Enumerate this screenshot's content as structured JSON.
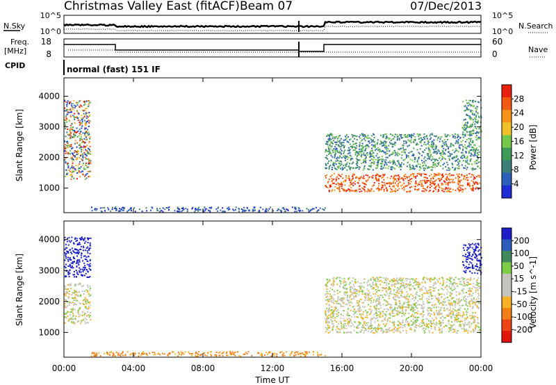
{
  "header": {
    "title": "Christmas Valley East (fitACF)",
    "beam": "Beam 07",
    "date": "07/Dec/2013"
  },
  "noise_panel": {
    "left_label": "N.Sky",
    "right_label": "N.Search",
    "left_ticks": [
      "10^5",
      "10^0"
    ],
    "right_ticks": [
      "10^5",
      "10^0"
    ]
  },
  "freq_panel": {
    "left_label_1": "Freq.",
    "left_label_2": "[MHz]",
    "right_label": "Nave",
    "left_ticks": [
      "18",
      "8"
    ],
    "right_ticks": [
      "60",
      "0"
    ]
  },
  "cpid": {
    "label": "CPID",
    "value": "normal (fast) 151 IF"
  },
  "colors": {
    "frame": "#000000",
    "power_scale": [
      "#1e2dd2",
      "#2c5fb8",
      "#3b7f7a",
      "#3f9a5a",
      "#74c94a",
      "#f2c22a",
      "#f7921b",
      "#f25a12",
      "#e8210e"
    ],
    "velocity_scale": [
      "#1c1fc8",
      "#2c5dbb",
      "#3e8a5c",
      "#7ccd45",
      "#c4c4bc",
      "#c4c4bc",
      "#f6b125",
      "#f17e16",
      "#ec4412",
      "#e2150d"
    ]
  },
  "chart_data": [
    {
      "type": "heatmap",
      "title": "Power",
      "ylabel": "Slant Range [km]",
      "xlabel": "",
      "ylim": [
        200,
        4600
      ],
      "xlim_hours": [
        0,
        24
      ],
      "x_ticks": [
        "00:00",
        "04:00",
        "08:00",
        "12:00",
        "16:00",
        "20:00",
        "00:00"
      ],
      "y_ticks": [
        "1000",
        "2000",
        "3000",
        "4000"
      ],
      "colorbar": {
        "label": "Power [dB]",
        "ticks": [
          "4",
          "8",
          "12",
          "16",
          "20",
          "24",
          "28"
        ],
        "range": [
          0,
          30
        ]
      },
      "regions": [
        {
          "start_hour": 0.0,
          "end_hour": 1.5,
          "range_min_km": 1300,
          "range_max_km": 3900,
          "level": "mixed high"
        },
        {
          "start_hour": 1.5,
          "end_hour": 15.0,
          "range_min_km": 250,
          "range_max_km": 400,
          "level": "low"
        },
        {
          "start_hour": 15.0,
          "end_hour": 23.9,
          "range_min_km": 900,
          "range_max_km": 1500,
          "level": "high"
        },
        {
          "start_hour": 15.0,
          "end_hour": 23.9,
          "range_min_km": 1600,
          "range_max_km": 2800,
          "level": "medium"
        },
        {
          "start_hour": 22.9,
          "end_hour": 24.0,
          "range_min_km": 2800,
          "range_max_km": 3900,
          "level": "medium"
        }
      ]
    },
    {
      "type": "heatmap",
      "title": "Velocity",
      "ylabel": "Slant Range [km]",
      "xlabel": "Time UT",
      "ylim": [
        200,
        4600
      ],
      "xlim_hours": [
        0,
        24
      ],
      "x_ticks": [
        "00:00",
        "04:00",
        "08:00",
        "12:00",
        "16:00",
        "20:00",
        "00:00"
      ],
      "y_ticks": [
        "1000",
        "2000",
        "3000",
        "4000"
      ],
      "colorbar": {
        "label": "Velocity [m s^-1]",
        "ticks": [
          "200",
          "100",
          "50",
          "15",
          "-15",
          "-50",
          "-100",
          "-200"
        ],
        "range": [
          -250,
          250
        ]
      },
      "regions": [
        {
          "start_hour": 0.0,
          "end_hour": 1.5,
          "range_min_km": 2800,
          "range_max_km": 4100,
          "value_m_s": 200
        },
        {
          "start_hour": 0.0,
          "end_hour": 1.5,
          "range_min_km": 1300,
          "range_max_km": 2600,
          "value_m_s": 0
        },
        {
          "start_hour": 1.5,
          "end_hour": 15.0,
          "range_min_km": 250,
          "range_max_km": 400,
          "value_m_s": -60
        },
        {
          "start_hour": 15.0,
          "end_hour": 23.9,
          "range_min_km": 1000,
          "range_max_km": 2800,
          "value_m_s": 0
        },
        {
          "start_hour": 22.9,
          "end_hour": 24.0,
          "range_min_km": 2900,
          "range_max_km": 3900,
          "value_m_s": 180
        }
      ]
    }
  ]
}
